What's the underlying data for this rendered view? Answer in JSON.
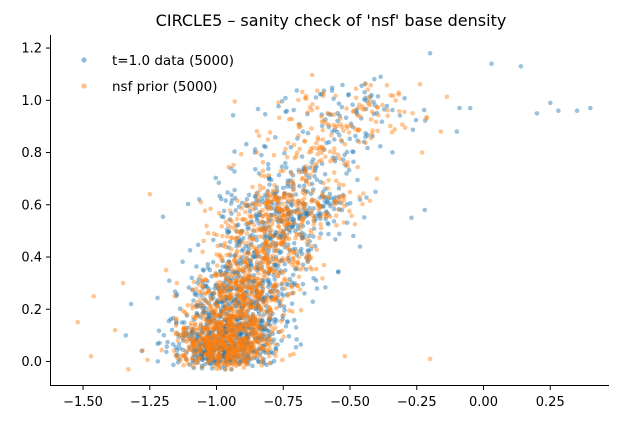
{
  "chart_data": {
    "type": "scatter",
    "title": "CIRCLE5 – sanity check of 'nsf' base density",
    "xlabel": "",
    "ylabel": "",
    "xlim": [
      -1.62,
      0.47
    ],
    "ylim": [
      -0.09,
      1.25
    ],
    "xticks": [
      -1.5,
      -1.25,
      -1.0,
      -0.75,
      -0.5,
      -0.25,
      0.0,
      0.25
    ],
    "xtick_labels": [
      "−1.50",
      "−1.25",
      "−1.00",
      "−0.75",
      "−0.50",
      "−0.25",
      "0.00",
      "0.25"
    ],
    "yticks": [
      0.0,
      0.2,
      0.4,
      0.6,
      0.8,
      1.0,
      1.2
    ],
    "ytick_labels": [
      "0.0",
      "0.2",
      "0.4",
      "0.6",
      "0.8",
      "1.0",
      "1.2"
    ],
    "grid": false,
    "legend_position": "top-left",
    "series": [
      {
        "name": "t=1.0 data (5000)",
        "color": "#1f77b4",
        "n": 5000,
        "outliers": [
          [
            0.4,
            0.97
          ],
          [
            0.35,
            0.96
          ],
          [
            0.28,
            0.96
          ],
          [
            0.2,
            0.95
          ],
          [
            0.25,
            0.99
          ],
          [
            0.14,
            1.13
          ],
          [
            0.03,
            1.14
          ],
          [
            -0.05,
            0.97
          ],
          [
            -0.1,
            0.88
          ],
          [
            -0.2,
            1.18
          ],
          [
            -0.22,
            0.58
          ],
          [
            -0.27,
            0.55
          ],
          [
            -1.32,
            0.22
          ],
          [
            -1.34,
            0.1
          ],
          [
            -1.28,
            0.04
          ]
        ]
      },
      {
        "name": "nsf prior (5000)",
        "color": "#ff7f0e",
        "n": 5000,
        "outliers": [
          [
            -1.52,
            0.15
          ],
          [
            -1.46,
            0.25
          ],
          [
            -1.47,
            0.02
          ],
          [
            -1.38,
            0.12
          ],
          [
            -1.35,
            0.3
          ],
          [
            -1.33,
            -0.03
          ],
          [
            -1.25,
            0.64
          ],
          [
            -0.52,
            0.02
          ],
          [
            -0.2,
            0.01
          ],
          [
            -0.16,
            0.88
          ],
          [
            -0.23,
            0.8
          ]
        ]
      }
    ]
  }
}
